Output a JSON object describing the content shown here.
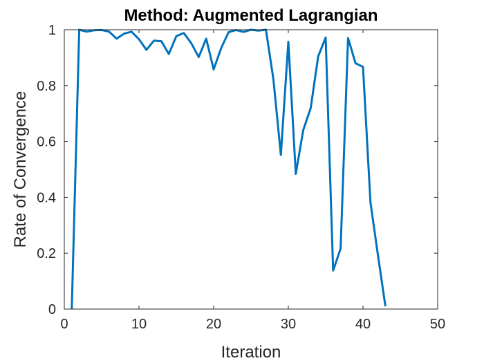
{
  "chart_data": {
    "type": "line",
    "title": "Method: Augmented Lagrangian",
    "xlabel": "Iteration",
    "ylabel": "Rate of Convergence",
    "xlim": [
      0,
      50
    ],
    "ylim": [
      0,
      1
    ],
    "xticks": [
      "0",
      "10",
      "20",
      "30",
      "40",
      "50"
    ],
    "yticks": [
      "0",
      "0.2",
      "0.4",
      "0.6",
      "0.8",
      "1"
    ],
    "grid": false,
    "line_color": "#0072BD",
    "series": [
      {
        "x": [
          1,
          2,
          3,
          4,
          5,
          6,
          7,
          8,
          9,
          10,
          11,
          12,
          13,
          14,
          15,
          16,
          17,
          18,
          19,
          20,
          21,
          22,
          23,
          24,
          25,
          26,
          27,
          28,
          29,
          30,
          31,
          32,
          33,
          34,
          35,
          36,
          37,
          38,
          39,
          40,
          41,
          42,
          43
        ],
        "values": [
          0.0,
          1.0,
          0.993,
          0.998,
          0.999,
          0.993,
          0.968,
          0.986,
          0.993,
          0.966,
          0.928,
          0.961,
          0.959,
          0.913,
          0.977,
          0.988,
          0.952,
          0.902,
          0.968,
          0.858,
          0.934,
          0.991,
          0.999,
          0.992,
          1.0,
          0.997,
          1.0,
          0.823,
          0.552,
          0.957,
          0.484,
          0.641,
          0.72,
          0.905,
          0.972,
          0.138,
          0.216,
          0.97,
          0.88,
          0.867,
          0.382,
          0.193,
          0.01
        ]
      }
    ]
  }
}
